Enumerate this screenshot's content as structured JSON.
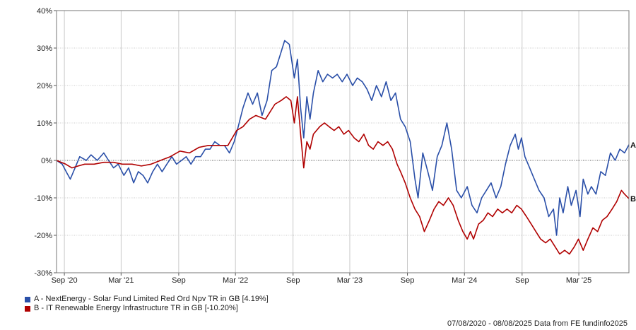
{
  "chart_data": {
    "type": "line",
    "footer": "07/08/2020 - 08/08/2025 Data from FE fundinfo2025",
    "ylim": [
      -30,
      40
    ],
    "y_ticks": [
      40,
      30,
      20,
      10,
      0,
      -10,
      -20,
      -30
    ],
    "y_tick_labels": [
      "40%",
      "30%",
      "20%",
      "10%",
      "0%",
      "-10%",
      "-20%",
      "-30%"
    ],
    "x_ticks": [
      {
        "date": "2020-09-01",
        "label": "Sep '20"
      },
      {
        "date": "2021-03-01",
        "label": "Mar '21"
      },
      {
        "date": "2021-09-01",
        "label": "Sep"
      },
      {
        "date": "2022-03-01",
        "label": "Mar '22"
      },
      {
        "date": "2022-09-01",
        "label": "Sep"
      },
      {
        "date": "2023-03-01",
        "label": "Mar '23"
      },
      {
        "date": "2023-09-01",
        "label": "Sep"
      },
      {
        "date": "2024-03-01",
        "label": "Mar '24"
      },
      {
        "date": "2024-09-01",
        "label": "Sep"
      },
      {
        "date": "2025-03-01",
        "label": "Mar '25"
      }
    ],
    "x_range": [
      "2020-08-07",
      "2025-08-08"
    ],
    "grid": true,
    "legend_position": "bottom-left",
    "series": [
      {
        "name": "A - NextEnergy - Solar Fund Limited Red Ord Npv TR in GB [4.19%]",
        "end_label": "A",
        "color": "#2a4fa8",
        "points": [
          [
            "2020-08-07",
            0
          ],
          [
            "2020-08-25",
            -1
          ],
          [
            "2020-09-10",
            -3.5
          ],
          [
            "2020-09-20",
            -5
          ],
          [
            "2020-10-05",
            -2
          ],
          [
            "2020-10-20",
            1
          ],
          [
            "2020-11-10",
            0
          ],
          [
            "2020-11-25",
            1.5
          ],
          [
            "2020-12-15",
            0
          ],
          [
            "2021-01-05",
            2
          ],
          [
            "2021-01-20",
            0
          ],
          [
            "2021-02-05",
            -2
          ],
          [
            "2021-02-20",
            -1
          ],
          [
            "2021-03-10",
            -4
          ],
          [
            "2021-03-25",
            -2
          ],
          [
            "2021-04-10",
            -6
          ],
          [
            "2021-04-25",
            -3
          ],
          [
            "2021-05-10",
            -4
          ],
          [
            "2021-05-25",
            -6
          ],
          [
            "2021-06-10",
            -3
          ],
          [
            "2021-06-25",
            -1
          ],
          [
            "2021-07-10",
            -3
          ],
          [
            "2021-07-25",
            -1
          ],
          [
            "2021-08-10",
            1
          ],
          [
            "2021-08-25",
            -1
          ],
          [
            "2021-09-10",
            0
          ],
          [
            "2021-09-25",
            1
          ],
          [
            "2021-10-10",
            -1
          ],
          [
            "2021-10-25",
            1
          ],
          [
            "2021-11-10",
            1
          ],
          [
            "2021-11-25",
            3
          ],
          [
            "2021-12-10",
            3
          ],
          [
            "2021-12-25",
            5
          ],
          [
            "2022-01-10",
            4
          ],
          [
            "2022-01-25",
            4
          ],
          [
            "2022-02-10",
            2
          ],
          [
            "2022-02-25",
            5
          ],
          [
            "2022-03-10",
            9
          ],
          [
            "2022-03-25",
            14
          ],
          [
            "2022-04-10",
            18
          ],
          [
            "2022-04-25",
            15
          ],
          [
            "2022-05-10",
            18
          ],
          [
            "2022-05-25",
            12
          ],
          [
            "2022-06-10",
            16
          ],
          [
            "2022-06-25",
            24
          ],
          [
            "2022-07-10",
            25
          ],
          [
            "2022-07-25",
            29
          ],
          [
            "2022-08-05",
            32
          ],
          [
            "2022-08-20",
            31
          ],
          [
            "2022-09-05",
            22
          ],
          [
            "2022-09-15",
            27
          ],
          [
            "2022-09-25",
            14
          ],
          [
            "2022-10-05",
            6
          ],
          [
            "2022-10-15",
            17
          ],
          [
            "2022-10-25",
            11
          ],
          [
            "2022-11-05",
            18
          ],
          [
            "2022-11-20",
            24
          ],
          [
            "2022-12-05",
            21
          ],
          [
            "2022-12-20",
            23
          ],
          [
            "2023-01-05",
            22
          ],
          [
            "2023-01-20",
            23
          ],
          [
            "2023-02-05",
            21
          ],
          [
            "2023-02-20",
            23
          ],
          [
            "2023-03-10",
            20
          ],
          [
            "2023-03-25",
            22
          ],
          [
            "2023-04-10",
            21
          ],
          [
            "2023-04-25",
            19
          ],
          [
            "2023-05-10",
            16
          ],
          [
            "2023-05-25",
            20
          ],
          [
            "2023-06-10",
            17
          ],
          [
            "2023-06-25",
            21
          ],
          [
            "2023-07-10",
            16
          ],
          [
            "2023-07-25",
            18
          ],
          [
            "2023-08-10",
            11
          ],
          [
            "2023-08-25",
            9
          ],
          [
            "2023-09-10",
            5
          ],
          [
            "2023-09-25",
            -5
          ],
          [
            "2023-10-05",
            -10
          ],
          [
            "2023-10-20",
            2
          ],
          [
            "2023-11-05",
            -3
          ],
          [
            "2023-11-20",
            -8
          ],
          [
            "2023-12-05",
            1
          ],
          [
            "2023-12-20",
            4
          ],
          [
            "2024-01-05",
            10
          ],
          [
            "2024-01-20",
            3
          ],
          [
            "2024-02-05",
            -8
          ],
          [
            "2024-02-20",
            -10
          ],
          [
            "2024-03-10",
            -7
          ],
          [
            "2024-03-25",
            -12
          ],
          [
            "2024-04-10",
            -14
          ],
          [
            "2024-04-25",
            -10
          ],
          [
            "2024-05-10",
            -8
          ],
          [
            "2024-05-25",
            -6
          ],
          [
            "2024-06-10",
            -10
          ],
          [
            "2024-06-25",
            -7
          ],
          [
            "2024-07-10",
            -1
          ],
          [
            "2024-07-25",
            4
          ],
          [
            "2024-08-10",
            7
          ],
          [
            "2024-08-20",
            3
          ],
          [
            "2024-08-30",
            6
          ],
          [
            "2024-09-10",
            1
          ],
          [
            "2024-09-25",
            -2
          ],
          [
            "2024-10-10",
            -5
          ],
          [
            "2024-10-25",
            -8
          ],
          [
            "2024-11-10",
            -10
          ],
          [
            "2024-11-25",
            -15
          ],
          [
            "2024-12-10",
            -13
          ],
          [
            "2024-12-20",
            -20
          ],
          [
            "2024-12-30",
            -10
          ],
          [
            "2025-01-10",
            -14
          ],
          [
            "2025-01-25",
            -7
          ],
          [
            "2025-02-05",
            -12
          ],
          [
            "2025-02-20",
            -8
          ],
          [
            "2025-03-05",
            -15
          ],
          [
            "2025-03-15",
            -5
          ],
          [
            "2025-03-30",
            -9
          ],
          [
            "2025-04-10",
            -7
          ],
          [
            "2025-04-25",
            -9
          ],
          [
            "2025-05-10",
            -3
          ],
          [
            "2025-05-25",
            -4
          ],
          [
            "2025-06-10",
            2
          ],
          [
            "2025-06-25",
            0
          ],
          [
            "2025-07-10",
            3
          ],
          [
            "2025-07-25",
            2
          ],
          [
            "2025-08-08",
            4.19
          ]
        ]
      },
      {
        "name": "B - IT Renewable Energy Infrastructure TR in GB [-10.20%]",
        "end_label": "B",
        "color": "#b00000",
        "points": [
          [
            "2020-08-07",
            0
          ],
          [
            "2020-09-05",
            -1
          ],
          [
            "2020-09-25",
            -2
          ],
          [
            "2020-10-15",
            -1.5
          ],
          [
            "2020-11-05",
            -1
          ],
          [
            "2020-12-05",
            -1
          ],
          [
            "2021-01-05",
            -0.5
          ],
          [
            "2021-02-05",
            -0.5
          ],
          [
            "2021-03-05",
            -1
          ],
          [
            "2021-04-05",
            -1
          ],
          [
            "2021-05-05",
            -1.5
          ],
          [
            "2021-06-05",
            -1
          ],
          [
            "2021-07-05",
            0
          ],
          [
            "2021-08-05",
            1
          ],
          [
            "2021-09-05",
            2.5
          ],
          [
            "2021-10-05",
            2
          ],
          [
            "2021-11-05",
            3.5
          ],
          [
            "2021-12-05",
            4
          ],
          [
            "2022-01-05",
            4
          ],
          [
            "2022-02-05",
            4
          ],
          [
            "2022-03-05",
            8
          ],
          [
            "2022-03-25",
            9
          ],
          [
            "2022-04-15",
            11
          ],
          [
            "2022-05-05",
            12
          ],
          [
            "2022-06-05",
            11
          ],
          [
            "2022-07-05",
            15
          ],
          [
            "2022-07-25",
            16
          ],
          [
            "2022-08-10",
            17
          ],
          [
            "2022-08-25",
            16
          ],
          [
            "2022-09-05",
            10
          ],
          [
            "2022-09-15",
            17
          ],
          [
            "2022-09-25",
            7
          ],
          [
            "2022-10-05",
            -2
          ],
          [
            "2022-10-15",
            5
          ],
          [
            "2022-10-25",
            3
          ],
          [
            "2022-11-05",
            7
          ],
          [
            "2022-11-25",
            9
          ],
          [
            "2022-12-10",
            10
          ],
          [
            "2022-12-25",
            9
          ],
          [
            "2023-01-10",
            8
          ],
          [
            "2023-01-25",
            9
          ],
          [
            "2023-02-10",
            7
          ],
          [
            "2023-02-25",
            8
          ],
          [
            "2023-03-15",
            6
          ],
          [
            "2023-03-30",
            5
          ],
          [
            "2023-04-15",
            7
          ],
          [
            "2023-04-30",
            4
          ],
          [
            "2023-05-15",
            3
          ],
          [
            "2023-05-30",
            5
          ],
          [
            "2023-06-15",
            4
          ],
          [
            "2023-06-30",
            5
          ],
          [
            "2023-07-15",
            3
          ],
          [
            "2023-07-30",
            -1
          ],
          [
            "2023-08-10",
            -3
          ],
          [
            "2023-08-25",
            -6
          ],
          [
            "2023-09-10",
            -10
          ],
          [
            "2023-09-25",
            -13
          ],
          [
            "2023-10-10",
            -15
          ],
          [
            "2023-10-25",
            -19
          ],
          [
            "2023-11-10",
            -16
          ],
          [
            "2023-11-25",
            -13
          ],
          [
            "2023-12-10",
            -11
          ],
          [
            "2023-12-25",
            -12
          ],
          [
            "2024-01-10",
            -10
          ],
          [
            "2024-01-25",
            -12
          ],
          [
            "2024-02-10",
            -16
          ],
          [
            "2024-02-25",
            -19
          ],
          [
            "2024-03-10",
            -21
          ],
          [
            "2024-03-20",
            -19
          ],
          [
            "2024-03-30",
            -21
          ],
          [
            "2024-04-15",
            -17
          ],
          [
            "2024-04-30",
            -16
          ],
          [
            "2024-05-15",
            -14
          ],
          [
            "2024-05-30",
            -15
          ],
          [
            "2024-06-15",
            -13
          ],
          [
            "2024-06-30",
            -14
          ],
          [
            "2024-07-15",
            -13
          ],
          [
            "2024-07-30",
            -14
          ],
          [
            "2024-08-15",
            -12
          ],
          [
            "2024-08-30",
            -13
          ],
          [
            "2024-09-15",
            -15
          ],
          [
            "2024-09-30",
            -17
          ],
          [
            "2024-10-15",
            -19
          ],
          [
            "2024-10-30",
            -21
          ],
          [
            "2024-11-15",
            -22
          ],
          [
            "2024-11-30",
            -21
          ],
          [
            "2024-12-15",
            -23
          ],
          [
            "2024-12-30",
            -25
          ],
          [
            "2025-01-15",
            -24
          ],
          [
            "2025-01-30",
            -25
          ],
          [
            "2025-02-15",
            -23
          ],
          [
            "2025-02-28",
            -21
          ],
          [
            "2025-03-15",
            -24
          ],
          [
            "2025-03-30",
            -21
          ],
          [
            "2025-04-15",
            -18
          ],
          [
            "2025-04-30",
            -19
          ],
          [
            "2025-05-15",
            -16
          ],
          [
            "2025-05-30",
            -15
          ],
          [
            "2025-06-15",
            -13
          ],
          [
            "2025-06-30",
            -11
          ],
          [
            "2025-07-15",
            -8
          ],
          [
            "2025-07-25",
            -9
          ],
          [
            "2025-08-08",
            -10.2
          ]
        ]
      }
    ]
  }
}
